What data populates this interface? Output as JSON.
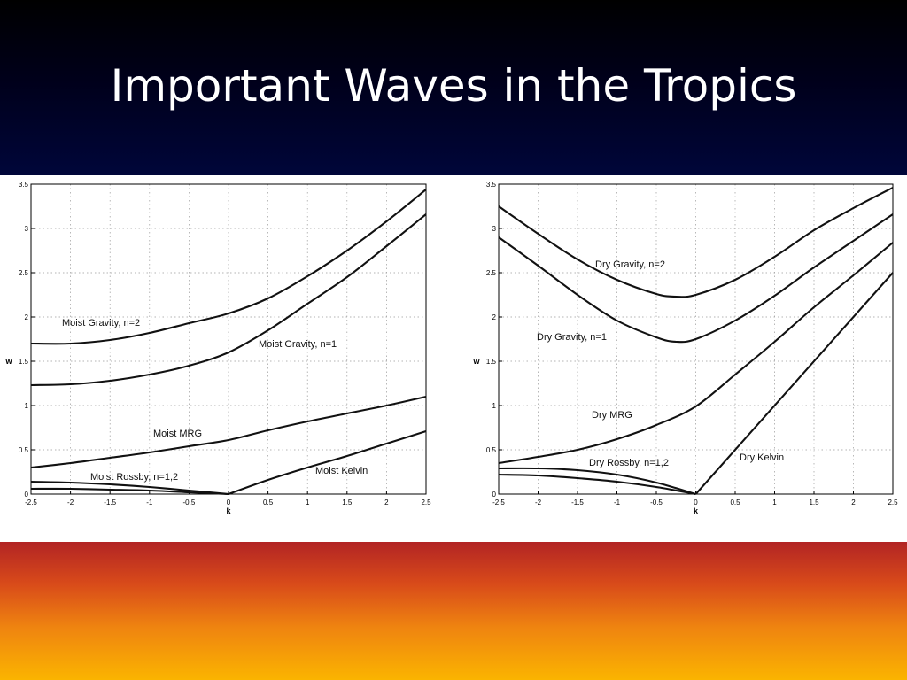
{
  "slide": {
    "title": "Important Waves in the Tropics",
    "colors": {
      "title_bg": "#000033",
      "title_text": "#ffffff",
      "figure_bg": "#ffffff",
      "bottom_from": "#b22424",
      "bottom_to": "#fbb400"
    }
  },
  "chart_data": [
    {
      "type": "line",
      "xlabel": "k",
      "ylabel": "w",
      "xlim": [
        -2.5,
        2.5
      ],
      "ylim": [
        0,
        3.5
      ],
      "xticks": [
        "-2.5",
        "-2",
        "-1.5",
        "-1",
        "-0.5",
        "0",
        "0.5",
        "1",
        "1.5",
        "2",
        "2.5"
      ],
      "yticks": [
        "0",
        "0.5",
        "1",
        "1.5",
        "2",
        "2.5",
        "3",
        "3.5"
      ],
      "grid": true,
      "series": [
        {
          "name": "Moist Gravity, n=2",
          "x": [
            -2.5,
            -2,
            -1.5,
            -1,
            -0.5,
            0,
            0.5,
            1,
            1.5,
            2,
            2.5
          ],
          "y": [
            1.7,
            1.7,
            1.74,
            1.82,
            1.93,
            2.04,
            2.21,
            2.46,
            2.75,
            3.08,
            3.44
          ]
        },
        {
          "name": "Moist Gravity, n=1",
          "x": [
            -2.5,
            -2,
            -1.5,
            -1,
            -0.5,
            0,
            0.5,
            1,
            1.5,
            2,
            2.5
          ],
          "y": [
            1.23,
            1.24,
            1.28,
            1.35,
            1.45,
            1.6,
            1.85,
            2.15,
            2.45,
            2.8,
            3.16
          ]
        },
        {
          "name": "Moist MRG",
          "x": [
            -2.5,
            -2,
            -1.5,
            -1,
            -0.5,
            0,
            0.5,
            1,
            1.5,
            2,
            2.5
          ],
          "y": [
            0.3,
            0.35,
            0.41,
            0.47,
            0.54,
            0.61,
            0.72,
            0.82,
            0.91,
            1.0,
            1.1
          ]
        },
        {
          "name": "Moist Rossby, n=1,2",
          "x": [
            -2.5,
            -2,
            -1.5,
            -1,
            -0.5,
            0
          ],
          "y": [
            0.14,
            0.13,
            0.11,
            0.08,
            0.04,
            0.0
          ]
        },
        {
          "name": "",
          "x": [
            -2.5,
            -2,
            -1.5,
            -1,
            -0.5,
            0
          ],
          "y": [
            0.06,
            0.06,
            0.05,
            0.04,
            0.02,
            0.0
          ]
        },
        {
          "name": "Moist Kelvin",
          "x": [
            0,
            0.5,
            1,
            1.5,
            2,
            2.5
          ],
          "y": [
            0.0,
            0.16,
            0.3,
            0.43,
            0.57,
            0.71
          ]
        }
      ],
      "labels": {
        "gravity2": "Moist Gravity, n=2",
        "gravity1": "Moist Gravity, n=1",
        "mrg": "Moist MRG",
        "rossby": "Moist Rossby, n=1,2",
        "kelvin": "Moist Kelvin"
      }
    },
    {
      "type": "line",
      "xlabel": "k",
      "ylabel": "w",
      "xlim": [
        -2.5,
        2.5
      ],
      "ylim": [
        0,
        3.5
      ],
      "xticks": [
        "-2.5",
        "-2",
        "-1.5",
        "-1",
        "-0.5",
        "0",
        "0.5",
        "1",
        "1.5",
        "2",
        "2.5"
      ],
      "yticks": [
        "0",
        "0.5",
        "1",
        "1.5",
        "2",
        "2.5",
        "3",
        "3.5"
      ],
      "grid": true,
      "series": [
        {
          "name": "Dry Gravity, n=2",
          "x": [
            -2.5,
            -2,
            -1.5,
            -1,
            -0.5,
            -0.25,
            0,
            0.5,
            1,
            1.5,
            2,
            2.5
          ],
          "y": [
            3.25,
            2.94,
            2.65,
            2.42,
            2.26,
            2.23,
            2.25,
            2.42,
            2.68,
            2.98,
            3.23,
            3.46
          ]
        },
        {
          "name": "Dry Gravity, n=1",
          "x": [
            -2.5,
            -2,
            -1.5,
            -1,
            -0.5,
            -0.25,
            0,
            0.5,
            1,
            1.5,
            2,
            2.5
          ],
          "y": [
            2.9,
            2.58,
            2.25,
            1.96,
            1.77,
            1.72,
            1.75,
            1.96,
            2.24,
            2.56,
            2.86,
            3.16
          ]
        },
        {
          "name": "Dry MRG",
          "x": [
            -2.5,
            -2,
            -1.5,
            -1,
            -0.5,
            0,
            0.5,
            1,
            1.5,
            2,
            2.5
          ],
          "y": [
            0.35,
            0.42,
            0.5,
            0.62,
            0.78,
            0.99,
            1.35,
            1.72,
            2.11,
            2.47,
            2.84
          ]
        },
        {
          "name": "Dry Rossby, n=1,2",
          "x": [
            -2.5,
            -2,
            -1.5,
            -1,
            -0.5,
            0
          ],
          "y": [
            0.29,
            0.29,
            0.27,
            0.22,
            0.13,
            0.0
          ]
        },
        {
          "name": "",
          "x": [
            -2.5,
            -2,
            -1.5,
            -1,
            -0.5,
            0
          ],
          "y": [
            0.22,
            0.21,
            0.18,
            0.14,
            0.08,
            0.0
          ]
        },
        {
          "name": "Dry Kelvin",
          "x": [
            0,
            2.5
          ],
          "y": [
            0,
            2.5
          ]
        }
      ],
      "labels": {
        "gravity2": "Dry Gravity, n=2",
        "gravity1": "Dry Gravity, n=1",
        "mrg": "Dry MRG",
        "rossby": "Dry Rossby, n=1,2",
        "kelvin": "Dry Kelvin"
      }
    }
  ]
}
